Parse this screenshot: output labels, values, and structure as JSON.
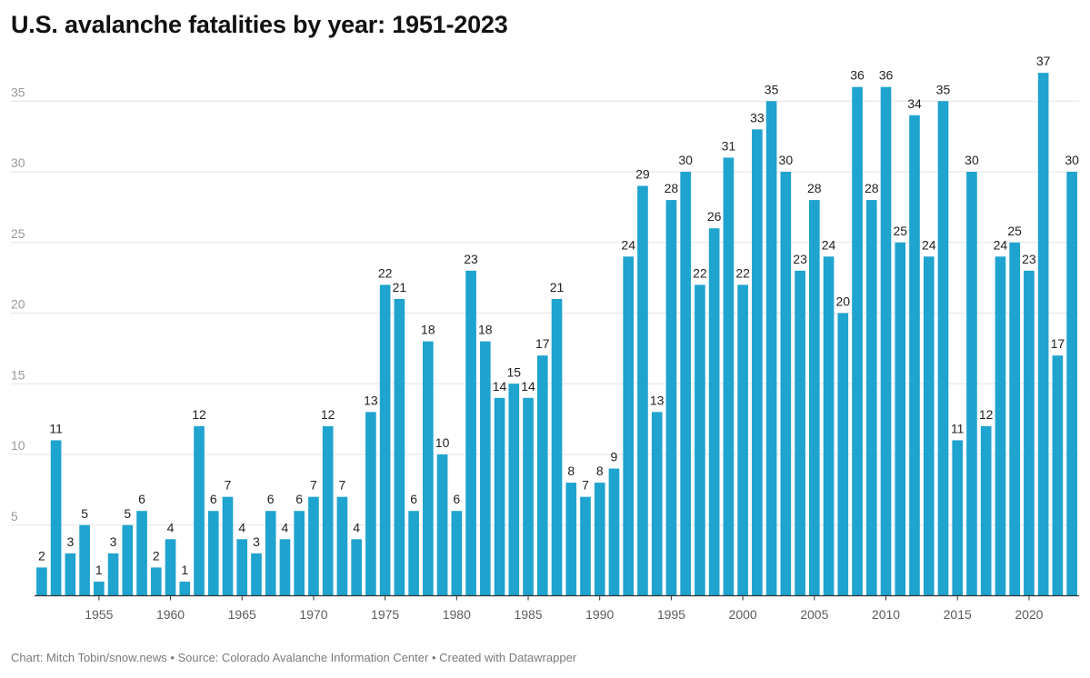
{
  "title": "U.S. avalanche fatalities by year: 1951-2023",
  "footer": {
    "chart_credit": "Chart: Mitch Tobin/snow.news",
    "separator": " • ",
    "source": "Source: Colorado Avalanche Information Center",
    "created_with": "Created with Datawrapper"
  },
  "colors": {
    "bar": "#1fa3cf",
    "grid": "#e3e3e3",
    "baseline": "#333333"
  },
  "chart_data": {
    "type": "bar",
    "title": "U.S. avalanche fatalities by year: 1951-2023",
    "xlabel": "",
    "ylabel": "",
    "ylim": [
      0,
      38
    ],
    "y_ticks": [
      5,
      10,
      15,
      20,
      25,
      30,
      35
    ],
    "x_ticks": [
      1955,
      1960,
      1965,
      1970,
      1975,
      1980,
      1985,
      1990,
      1995,
      2000,
      2005,
      2010,
      2015,
      2020
    ],
    "grid": true,
    "categories": [
      1951,
      1952,
      1953,
      1954,
      1955,
      1956,
      1957,
      1958,
      1959,
      1960,
      1961,
      1962,
      1963,
      1964,
      1965,
      1966,
      1967,
      1968,
      1969,
      1970,
      1971,
      1972,
      1973,
      1974,
      1975,
      1976,
      1977,
      1978,
      1979,
      1980,
      1981,
      1982,
      1983,
      1984,
      1985,
      1986,
      1987,
      1988,
      1989,
      1990,
      1991,
      1992,
      1993,
      1994,
      1995,
      1996,
      1997,
      1998,
      1999,
      2000,
      2001,
      2002,
      2003,
      2004,
      2005,
      2006,
      2007,
      2008,
      2009,
      2010,
      2011,
      2012,
      2013,
      2014,
      2015,
      2016,
      2017,
      2018,
      2019,
      2020,
      2021,
      2022,
      2023
    ],
    "values": [
      2,
      11,
      3,
      5,
      1,
      3,
      5,
      6,
      2,
      4,
      1,
      12,
      6,
      7,
      4,
      3,
      6,
      4,
      6,
      7,
      12,
      7,
      4,
      13,
      22,
      21,
      6,
      18,
      10,
      6,
      23,
      18,
      14,
      15,
      14,
      17,
      21,
      8,
      7,
      8,
      9,
      24,
      29,
      13,
      28,
      30,
      22,
      26,
      31,
      22,
      33,
      35,
      30,
      23,
      28,
      24,
      20,
      36,
      28,
      36,
      25,
      34,
      24,
      35,
      11,
      30,
      12,
      24,
      25,
      23,
      37,
      17,
      30
    ]
  }
}
